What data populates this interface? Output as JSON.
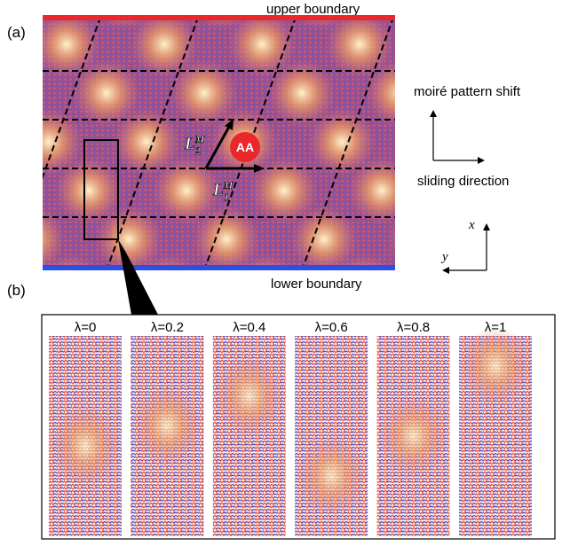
{
  "panel_a": {
    "label": "(a)",
    "upper_boundary": "upper boundary",
    "lower_boundary": "lower boundary",
    "aa": "AA",
    "vector_2": {
      "base": "L",
      "sup": "M",
      "sub": "2"
    },
    "vector_1": {
      "base": "L",
      "sup": "M",
      "sub": "1"
    },
    "shift_label": "moiré pattern shift",
    "sliding_label": "sliding direction",
    "axis_x": "x",
    "axis_y": "y"
  },
  "panel_b": {
    "label": "(b)",
    "panels": [
      "λ=0",
      "λ=0.2",
      "λ=0.4",
      "λ=0.6",
      "λ=0.8",
      "λ=1"
    ]
  }
}
